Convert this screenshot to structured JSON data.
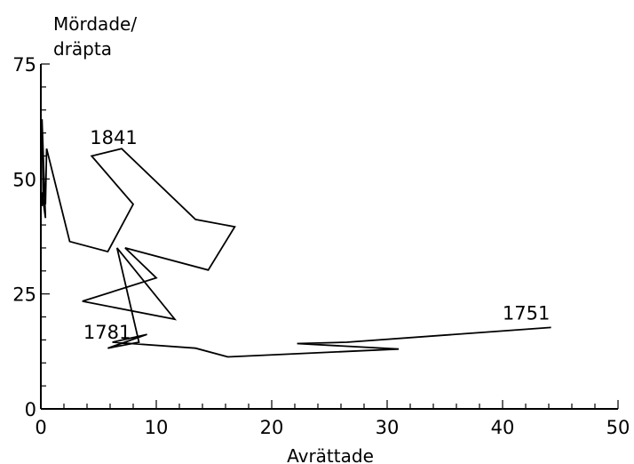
{
  "chart_data": {
    "type": "line",
    "title": "",
    "xlabel": "Avrättade",
    "ylabel_lines": [
      "Mördade/",
      "dräpta"
    ],
    "xlim": [
      0,
      50
    ],
    "ylim": [
      0,
      75
    ],
    "x_ticks": [
      0,
      10,
      20,
      30,
      40,
      50
    ],
    "x_tick_labels": [
      "0",
      "10",
      "20",
      "30",
      "40",
      "50"
    ],
    "y_ticks": [
      0,
      25,
      50,
      75
    ],
    "y_tick_labels": [
      "0",
      "25",
      "50",
      "75"
    ],
    "grid": false,
    "series": [
      {
        "x": [
          44.2,
          26.5,
          22.2,
          31,
          16.2,
          13.4,
          6.2,
          9.2,
          5.8,
          8.5,
          6.6,
          11.6,
          3.6,
          10,
          7.3,
          14.5,
          16.8,
          13.4,
          7,
          4.4,
          8,
          5.8,
          2.5,
          0.5,
          0.4,
          0.2,
          0.1,
          0.4,
          0.1,
          0.1
        ],
        "y": [
          17.7,
          14.5,
          14.2,
          13,
          11.3,
          13.2,
          14.5,
          16.2,
          13.2,
          14.5,
          35,
          19.5,
          23.4,
          28.5,
          35,
          30.2,
          39.6,
          41.2,
          56.6,
          55,
          44.5,
          34.2,
          36.4,
          56.6,
          44.5,
          45.5,
          63,
          41.5,
          47.1,
          44.1
        ]
      }
    ],
    "annotations": [
      {
        "text": "1751",
        "x": 44.2,
        "y": 17.7
      },
      {
        "text": "1781",
        "x": 6.2,
        "y": 14.5
      },
      {
        "text": "1841",
        "x": 7,
        "y": 56.6
      }
    ]
  }
}
